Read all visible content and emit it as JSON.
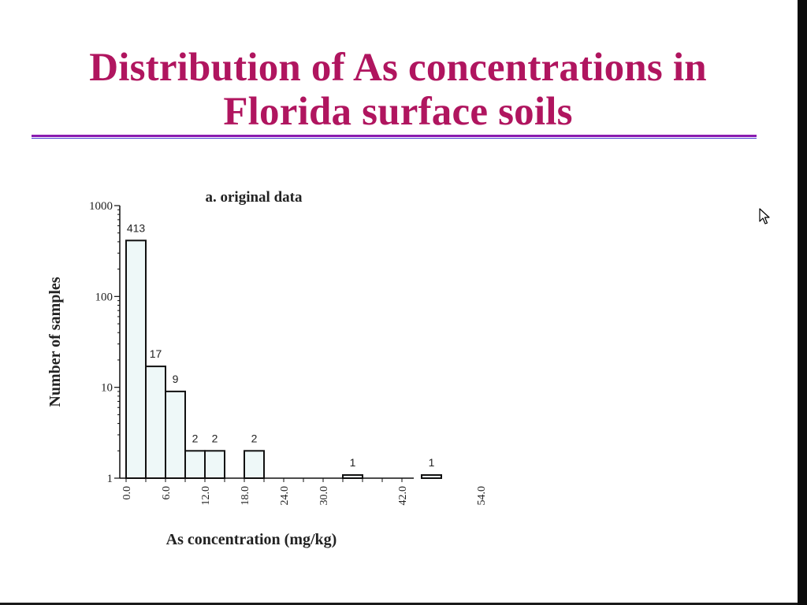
{
  "slide": {
    "title_line1": "Distribution of As concentrations in",
    "title_line2": "Florida surface soils",
    "title_color": "#b0155f",
    "rule_color": "#8a1bb0",
    "cursor_icon": "mouse-pointer-icon"
  },
  "chart_data": {
    "type": "bar",
    "title": "a. original data",
    "xlabel": "As concentration (mg/kg)",
    "ylabel": "Number of samples",
    "yscale": "log",
    "ylim": [
      1,
      1000
    ],
    "yticks": [
      1,
      10,
      100,
      1000
    ],
    "xlim": [
      0,
      62
    ],
    "xticks": [
      0,
      6,
      12,
      18,
      24,
      30,
      42,
      54
    ],
    "xtick_labels": [
      "0.0",
      "6.0",
      "12.0",
      "18.0",
      "24.0",
      "30.0",
      "42.0",
      "54.0"
    ],
    "bin_width": 3,
    "bars": [
      {
        "x0": 0,
        "x1": 3,
        "value": 413,
        "label": "413"
      },
      {
        "x0": 3,
        "x1": 6,
        "value": 17,
        "label": "17"
      },
      {
        "x0": 6,
        "x1": 9,
        "value": 9,
        "label": "9"
      },
      {
        "x0": 9,
        "x1": 12,
        "value": 2,
        "label": "2"
      },
      {
        "x0": 12,
        "x1": 15,
        "value": 2,
        "label": "2"
      },
      {
        "x0": 18,
        "x1": 21,
        "value": 2,
        "label": "2"
      },
      {
        "x0": 33,
        "x1": 36,
        "value": 1,
        "label": "1"
      },
      {
        "x0": 45,
        "x1": 48,
        "value": 1,
        "label": "1"
      }
    ],
    "bar_fill": "#eef8f8",
    "bar_stroke": "#111111",
    "grid": false,
    "legend": "none"
  }
}
